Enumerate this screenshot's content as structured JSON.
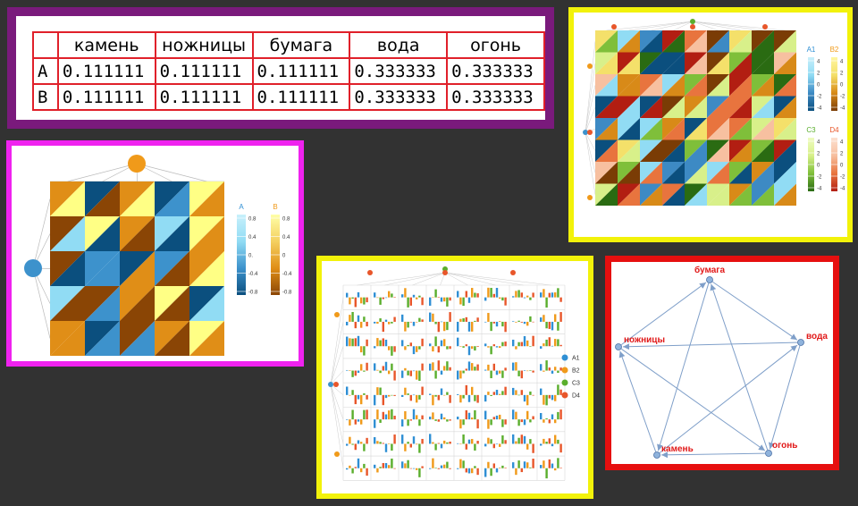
{
  "table": {
    "columns": [
      "",
      "камень",
      "ножницы",
      "бумага",
      "вода",
      "огонь"
    ],
    "rows": [
      {
        "label": "A",
        "values": [
          "0.111111",
          "0.111111",
          "0.111111",
          "0.333333",
          "0.333333"
        ]
      },
      {
        "label": "B",
        "values": [
          "0.111111",
          "0.111111",
          "0.111111",
          "0.333333",
          "0.333333"
        ]
      }
    ]
  },
  "heatmap_ab": {
    "legend": [
      {
        "name": "A",
        "color": "#2f8fd4",
        "ticks": [
          "0.8",
          "0.4",
          "0.",
          "-0.4",
          "-0.8"
        ]
      },
      {
        "name": "B",
        "color": "#f09a1a",
        "ticks": [
          "0.8",
          "0.4",
          "0",
          "-0.4",
          "-0.8"
        ]
      }
    ],
    "colors": [
      "#0b4f7e",
      "#8a4505",
      "#e08e17",
      "#ffff85",
      "#91dcf4",
      "#3d92cc"
    ]
  },
  "heatmap_abcd": {
    "legend": [
      {
        "name": "A1",
        "color": "#2f8fd4",
        "ticks": [
          "4",
          "2",
          "0",
          "-2",
          "-4"
        ]
      },
      {
        "name": "B2",
        "color": "#f09a1a",
        "ticks": [
          "4",
          "2",
          "0",
          "-2",
          "-4"
        ]
      },
      {
        "name": "C3",
        "color": "#5aae2c",
        "ticks": [
          "4",
          "2",
          "0",
          "-2",
          "-4"
        ]
      },
      {
        "name": "D4",
        "color": "#e8562a",
        "ticks": [
          "4",
          "2",
          "0",
          "-2",
          "-4"
        ]
      }
    ],
    "colors": [
      "#0b4f7e",
      "#3d8ac4",
      "#91dcf4",
      "#7a3c05",
      "#d88a18",
      "#f4e06a",
      "#2a6b12",
      "#7fbf3a",
      "#d8f08a",
      "#b21e12",
      "#e8743e",
      "#f7c0a0"
    ]
  },
  "bars": {
    "legend": [
      {
        "name": "A1",
        "color": "#2f8fd4"
      },
      {
        "name": "B2",
        "color": "#f09a1a"
      },
      {
        "name": "C3",
        "color": "#5aae2c"
      },
      {
        "name": "D4",
        "color": "#e8562a"
      }
    ]
  },
  "graph": {
    "nodes": [
      {
        "id": "бумага",
        "label": "бумага"
      },
      {
        "id": "вода",
        "label": "вода"
      },
      {
        "id": "огонь",
        "label": "огонь"
      },
      {
        "id": "камень",
        "label": "камень"
      },
      {
        "id": "ножницы",
        "label": "ножницы"
      }
    ],
    "edges": [
      [
        "бумага",
        "вода"
      ],
      [
        "вода",
        "огонь"
      ],
      [
        "огонь",
        "камень"
      ],
      [
        "камень",
        "ножницы"
      ],
      [
        "ножницы",
        "бумага"
      ],
      [
        "бумага",
        "камень"
      ],
      [
        "вода",
        "ножницы"
      ],
      [
        "огонь",
        "бумага"
      ],
      [
        "камень",
        "вода"
      ],
      [
        "ножницы",
        "огонь"
      ]
    ],
    "label_color": "#e11919",
    "node_color": "#8fb3dc",
    "edge_color": "#7f9fc9"
  }
}
